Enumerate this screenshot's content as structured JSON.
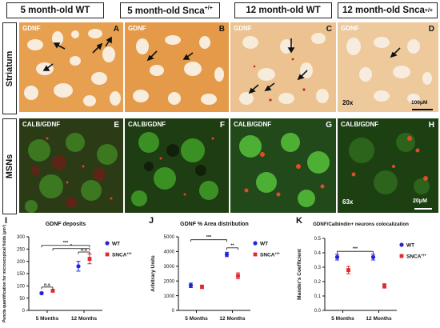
{
  "headers": [
    "5 month-old WT",
    "5 month-old Snca+/+",
    "12 month-old WT",
    "12 month-old Snca+/+"
  ],
  "row_labels": [
    "Striatum",
    "MSNs"
  ],
  "panels_top": [
    {
      "label": "GDNF",
      "letter": "A"
    },
    {
      "label": "GDNF",
      "letter": "B"
    },
    {
      "label": "GDNF",
      "letter": "C"
    },
    {
      "label": "GDNF",
      "letter": "D"
    }
  ],
  "panels_bottom": [
    {
      "label": "CALB/GDNF",
      "letter": "E"
    },
    {
      "label": "CALB/GDNF",
      "letter": "F"
    },
    {
      "label": "CALB/GDNF",
      "letter": "G"
    },
    {
      "label": "CALB/GDNF",
      "letter": "H"
    }
  ],
  "magnification_top": "20x",
  "scalebar_top": "100μM",
  "magnification_bottom": "63x",
  "scalebar_bottom": "20μM",
  "colors": {
    "wt": "#2323d8",
    "snca": "#e3282b",
    "stain_bg": "#e9a552",
    "green": "#2e8a1c"
  },
  "chart_data": [
    {
      "panel": "I",
      "type": "scatter",
      "title": "GDNF deposits",
      "ylabel": "Puncta quantification for microscopical fields (µm²)",
      "categories": [
        "5 Months",
        "12 Months"
      ],
      "ylim": [
        0,
        300
      ],
      "yticks": [
        "0",
        "50",
        "100",
        "150",
        "200",
        "250",
        "300"
      ],
      "series": [
        {
          "name": "WT",
          "values": [
            70,
            180
          ],
          "errors": [
            4,
            20
          ]
        },
        {
          "name": "SNCA+/+",
          "values": [
            80,
            210
          ],
          "errors": [
            5,
            20
          ]
        }
      ],
      "annotations": [
        "n.s",
        "***",
        "n.s",
        "*"
      ]
    },
    {
      "panel": "J",
      "type": "scatter",
      "title": "GDNF % Area distribution",
      "ylabel": "Arbitrary Units",
      "categories": [
        "5 Months",
        "12 Months"
      ],
      "ylim": [
        0,
        5000
      ],
      "yticks": [
        "0",
        "1000",
        "2000",
        "3000",
        "4000",
        "5000"
      ],
      "series": [
        {
          "name": "WT",
          "values": [
            1700,
            3800
          ],
          "errors": [
            150,
            150
          ]
        },
        {
          "name": "SNCA+/+",
          "values": [
            1600,
            2350
          ],
          "errors": [
            120,
            200
          ]
        }
      ],
      "annotations": [
        "***",
        "**"
      ]
    },
    {
      "panel": "K",
      "type": "scatter",
      "title": "GDNF/Calbindin+ neurons colocalization",
      "ylabel": "Mander's Coefficient",
      "categories": [
        "5 Months",
        "12 Months"
      ],
      "ylim": [
        0,
        0.5
      ],
      "yticks": [
        "0.0",
        "0.1",
        "0.2",
        "0.3",
        "0.4",
        "0.5"
      ],
      "series": [
        {
          "name": "WT",
          "values": [
            0.37,
            0.37
          ],
          "errors": [
            0.02,
            0.02
          ]
        },
        {
          "name": "SNCA+/+",
          "values": [
            0.28,
            0.17
          ],
          "errors": [
            0.025,
            0.015
          ]
        }
      ],
      "annotations": [
        "***"
      ]
    }
  ]
}
